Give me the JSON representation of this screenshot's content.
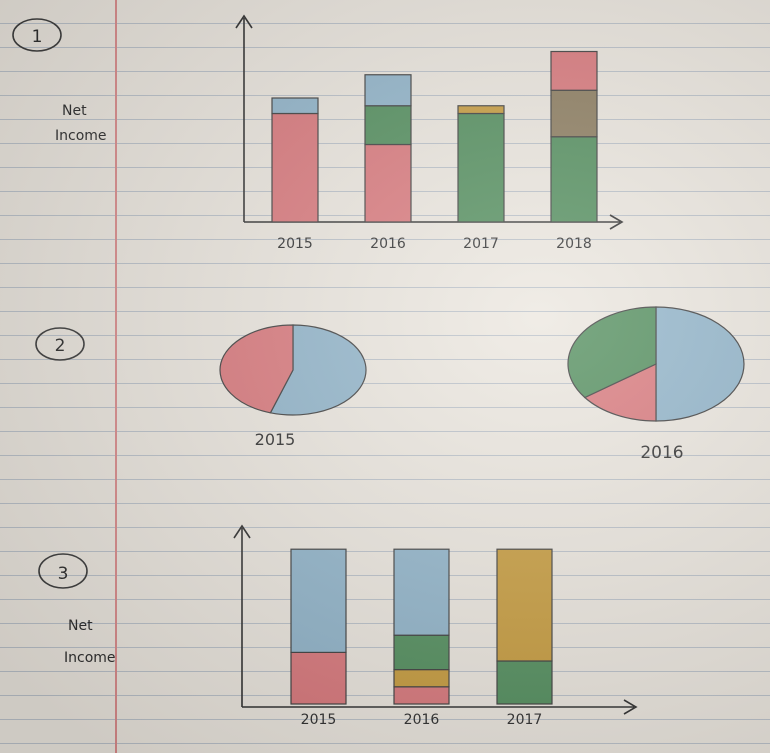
{
  "labels": {
    "section1": "1",
    "section2": "2",
    "section3": "3",
    "ylabel1_line1": "Net",
    "ylabel1_line2": "Income",
    "ylabel3_line1": "Net",
    "ylabel3_line2": "Income"
  },
  "colors": {
    "red": "#d9767a",
    "blue": "#8fb3c9",
    "green": "#4f8c5a",
    "brown": "#8a7a5c",
    "gold": "#c69a3a",
    "outline": "#3a3a3a"
  },
  "chart_data": [
    {
      "type": "bar",
      "stacked": true,
      "ylabel": "Net Income",
      "categories": [
        "2015",
        "2016",
        "2017",
        "2018"
      ],
      "segments": [
        [
          {
            "color": "red",
            "value": 7
          },
          {
            "color": "blue",
            "value": 1
          }
        ],
        [
          {
            "color": "red",
            "value": 5
          },
          {
            "color": "green",
            "value": 2.5
          },
          {
            "color": "blue",
            "value": 2
          }
        ],
        [
          {
            "color": "green",
            "value": 7
          },
          {
            "color": "gold",
            "value": 0.5
          }
        ],
        [
          {
            "color": "green",
            "value": 5.5
          },
          {
            "color": "brown",
            "value": 3
          },
          {
            "color": "red",
            "value": 2.5
          }
        ]
      ]
    },
    {
      "type": "pie",
      "categories": [
        "2015",
        "2016"
      ],
      "pies": [
        [
          {
            "color": "blue",
            "value": 55
          },
          {
            "color": "red",
            "value": 45
          }
        ],
        [
          {
            "color": "blue",
            "value": 50
          },
          {
            "color": "red",
            "value": 15
          },
          {
            "color": "green",
            "value": 35
          }
        ]
      ]
    },
    {
      "type": "bar",
      "stacked": true,
      "ylabel": "Net Income",
      "categories": [
        "2015",
        "2016",
        "2017"
      ],
      "segments": [
        [
          {
            "color": "red",
            "value": 3
          },
          {
            "color": "blue",
            "value": 6
          }
        ],
        [
          {
            "color": "red",
            "value": 1
          },
          {
            "color": "gold",
            "value": 1
          },
          {
            "color": "green",
            "value": 2
          },
          {
            "color": "blue",
            "value": 5
          }
        ],
        [
          {
            "color": "green",
            "value": 2.5
          },
          {
            "color": "gold",
            "value": 6.5
          }
        ]
      ]
    }
  ]
}
